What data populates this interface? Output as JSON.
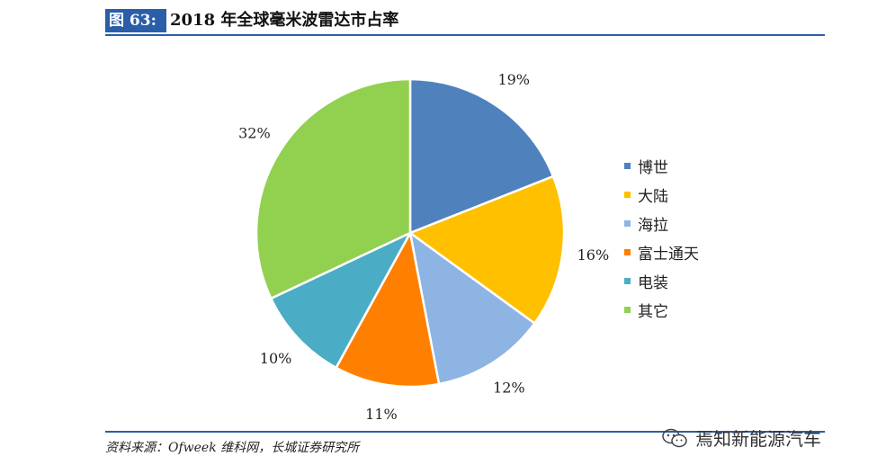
{
  "header": {
    "figure_tag": "图 63:",
    "title": "2018 年全球毫米波雷达市占率"
  },
  "chart_data": {
    "type": "pie",
    "title": "2018 年全球毫米波雷达市占率",
    "categories": [
      "博世",
      "大陆",
      "海拉",
      "富士通天",
      "电装",
      "其它"
    ],
    "values": [
      19,
      16,
      12,
      11,
      10,
      32
    ],
    "labels": [
      "19%",
      "16%",
      "12%",
      "11%",
      "10%",
      "32%"
    ],
    "colors": [
      "#4f81bd",
      "#ffc000",
      "#8eb4e3",
      "#ff8000",
      "#4bacc6",
      "#92d050"
    ],
    "legend_position": "right"
  },
  "footer": {
    "source": "资料来源：Ofweek 维科网，长城证券研究所"
  },
  "watermark": {
    "text": "焉知新能源汽车",
    "icon": "wechat-icon"
  }
}
